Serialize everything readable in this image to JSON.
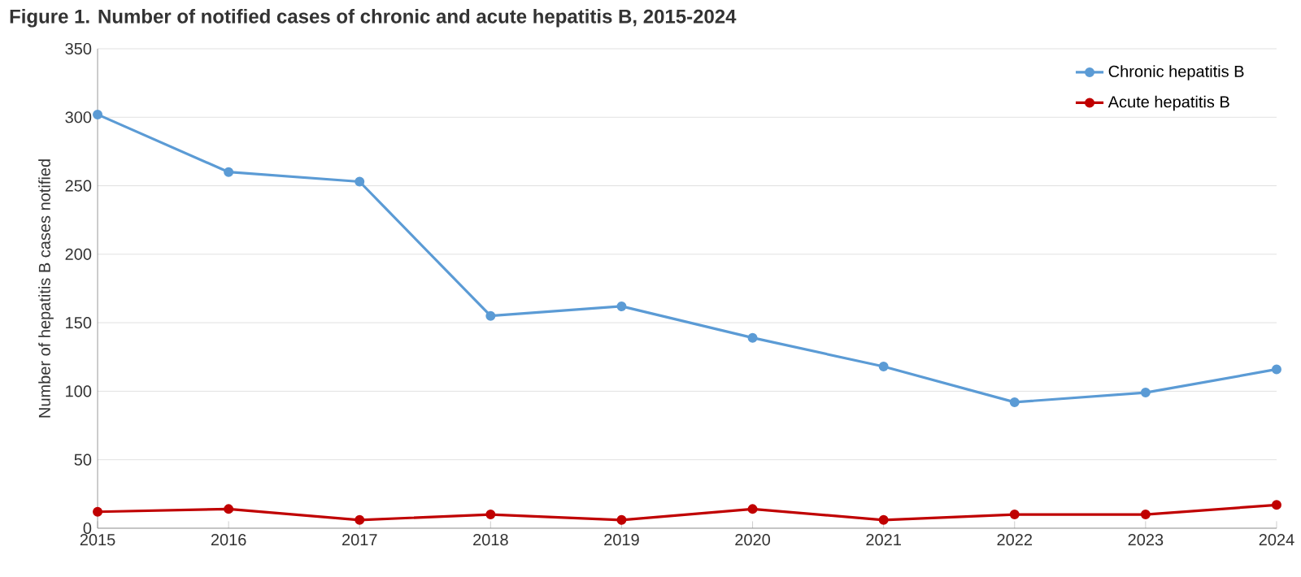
{
  "chart_data": {
    "type": "line",
    "title": "Figure 1. Number of notified cases of chronic and acute hepatitis B, 2015-2024",
    "ylabel": "Number of hepatitis B cases notified",
    "categories": [
      "2015",
      "2016",
      "2017",
      "2018",
      "2019",
      "2020",
      "2021",
      "2022",
      "2023",
      "2024"
    ],
    "series": [
      {
        "name": "Chronic hepatitis B",
        "color": "#5b9bd5",
        "values": [
          302,
          260,
          253,
          155,
          162,
          139,
          118,
          92,
          99,
          116
        ]
      },
      {
        "name": "Acute hepatitis B",
        "color": "#c00000",
        "values": [
          12,
          14,
          6,
          10,
          6,
          14,
          6,
          10,
          10,
          17
        ]
      }
    ],
    "ylim": [
      0,
      350
    ],
    "yticks": [
      0,
      50,
      100,
      150,
      200,
      250,
      300,
      350
    ],
    "grid": "y",
    "legend": "top right",
    "marker": "circle",
    "line_style": "solid"
  }
}
